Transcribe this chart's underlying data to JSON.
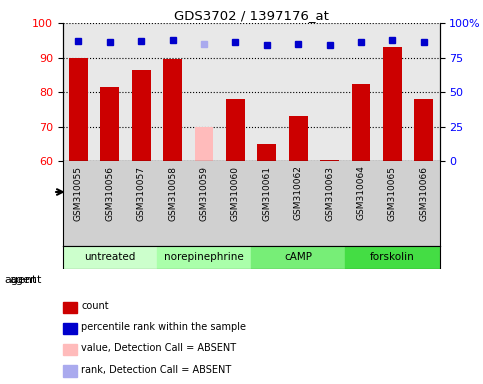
{
  "title": "GDS3702 / 1397176_at",
  "samples": [
    "GSM310055",
    "GSM310056",
    "GSM310057",
    "GSM310058",
    "GSM310059",
    "GSM310060",
    "GSM310061",
    "GSM310062",
    "GSM310063",
    "GSM310064",
    "GSM310065",
    "GSM310066"
  ],
  "bar_values": [
    90,
    81.5,
    86.5,
    89.5,
    70,
    78,
    65,
    73,
    60.5,
    82.5,
    93,
    78
  ],
  "bar_colors": [
    "#cc0000",
    "#cc0000",
    "#cc0000",
    "#cc0000",
    "#ffbbbb",
    "#cc0000",
    "#cc0000",
    "#cc0000",
    "#cc0000",
    "#cc0000",
    "#cc0000",
    "#cc0000"
  ],
  "dot_values": [
    87,
    86,
    87,
    88,
    85,
    86.5,
    84,
    85,
    84,
    86.5,
    88,
    86
  ],
  "dot_colors": [
    "#0000cc",
    "#0000cc",
    "#0000cc",
    "#0000cc",
    "#aaaaee",
    "#0000cc",
    "#0000cc",
    "#0000cc",
    "#0000cc",
    "#0000cc",
    "#0000cc",
    "#0000cc"
  ],
  "ylim_left": [
    60,
    100
  ],
  "ylim_right": [
    0,
    100
  ],
  "yticks_left": [
    60,
    70,
    80,
    90,
    100
  ],
  "yticks_right": [
    0,
    25,
    50,
    75,
    100
  ],
  "ytick_labels_right": [
    "0",
    "25",
    "50",
    "75",
    "100%"
  ],
  "groups": [
    {
      "label": "untreated",
      "start": 0,
      "end": 3,
      "color": "#ccffcc"
    },
    {
      "label": "norepinephrine",
      "start": 3,
      "end": 6,
      "color": "#aaffaa"
    },
    {
      "label": "cAMP",
      "start": 6,
      "end": 9,
      "color": "#77ee77"
    },
    {
      "label": "forskolin",
      "start": 9,
      "end": 12,
      "color": "#44dd44"
    }
  ],
  "legend_items": [
    {
      "color": "#cc0000",
      "label": "count"
    },
    {
      "color": "#0000cc",
      "label": "percentile rank within the sample"
    },
    {
      "color": "#ffbbbb",
      "label": "value, Detection Call = ABSENT"
    },
    {
      "color": "#aaaaee",
      "label": "rank, Detection Call = ABSENT"
    }
  ],
  "plot_bg": "#e8e8e8",
  "label_bg": "#d0d0d0"
}
